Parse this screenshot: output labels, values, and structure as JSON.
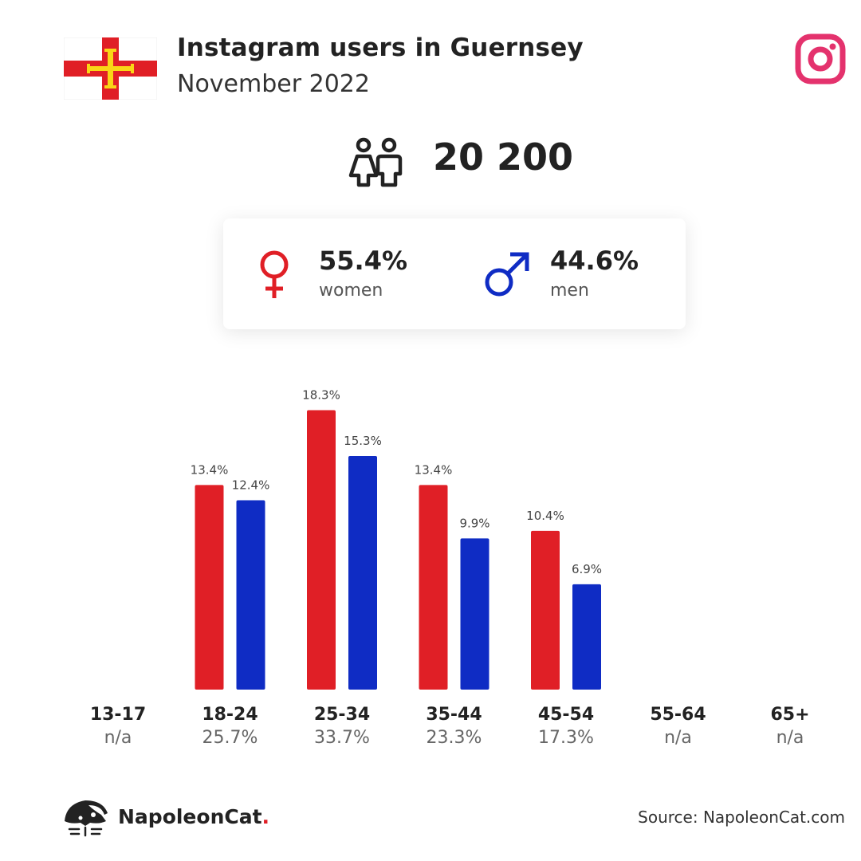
{
  "header": {
    "title": "Instagram users in Guernsey",
    "subtitle": "November 2022",
    "flag_icon": "guernsey-flag-icon",
    "platform_icon": "instagram-icon"
  },
  "total": {
    "icon": "people-icon",
    "value": "20 200"
  },
  "gender": {
    "women": {
      "percent": "55.4%",
      "label": "women",
      "icon": "female-symbol-icon",
      "color": "#e01f26"
    },
    "men": {
      "percent": "44.6%",
      "label": "men",
      "icon": "male-symbol-icon",
      "color": "#0f2cc4"
    }
  },
  "chart_data": {
    "type": "bar",
    "categories": [
      "13-17",
      "18-24",
      "25-34",
      "35-44",
      "45-54",
      "55-64",
      "65+"
    ],
    "category_shares": [
      "n/a",
      "25.7%",
      "33.7%",
      "23.3%",
      "17.3%",
      "n/a",
      "n/a"
    ],
    "series": [
      {
        "name": "women",
        "color": "#e01f26",
        "values": [
          null,
          13.4,
          18.3,
          13.4,
          10.4,
          null,
          null
        ],
        "labels": [
          "",
          "13.4%",
          "18.3%",
          "13.4%",
          "10.4%",
          "",
          ""
        ]
      },
      {
        "name": "men",
        "color": "#0f2cc4",
        "values": [
          null,
          12.4,
          15.3,
          9.9,
          6.9,
          null,
          null
        ],
        "labels": [
          "",
          "12.4%",
          "15.3%",
          "9.9%",
          "6.9%",
          "",
          ""
        ]
      }
    ],
    "ylim": [
      0,
      20
    ]
  },
  "footer": {
    "brand": "NapoleonCat",
    "brand_dot": ".",
    "logo_icon": "napoleoncat-logo-icon",
    "source": "Source: NapoleonCat.com"
  }
}
